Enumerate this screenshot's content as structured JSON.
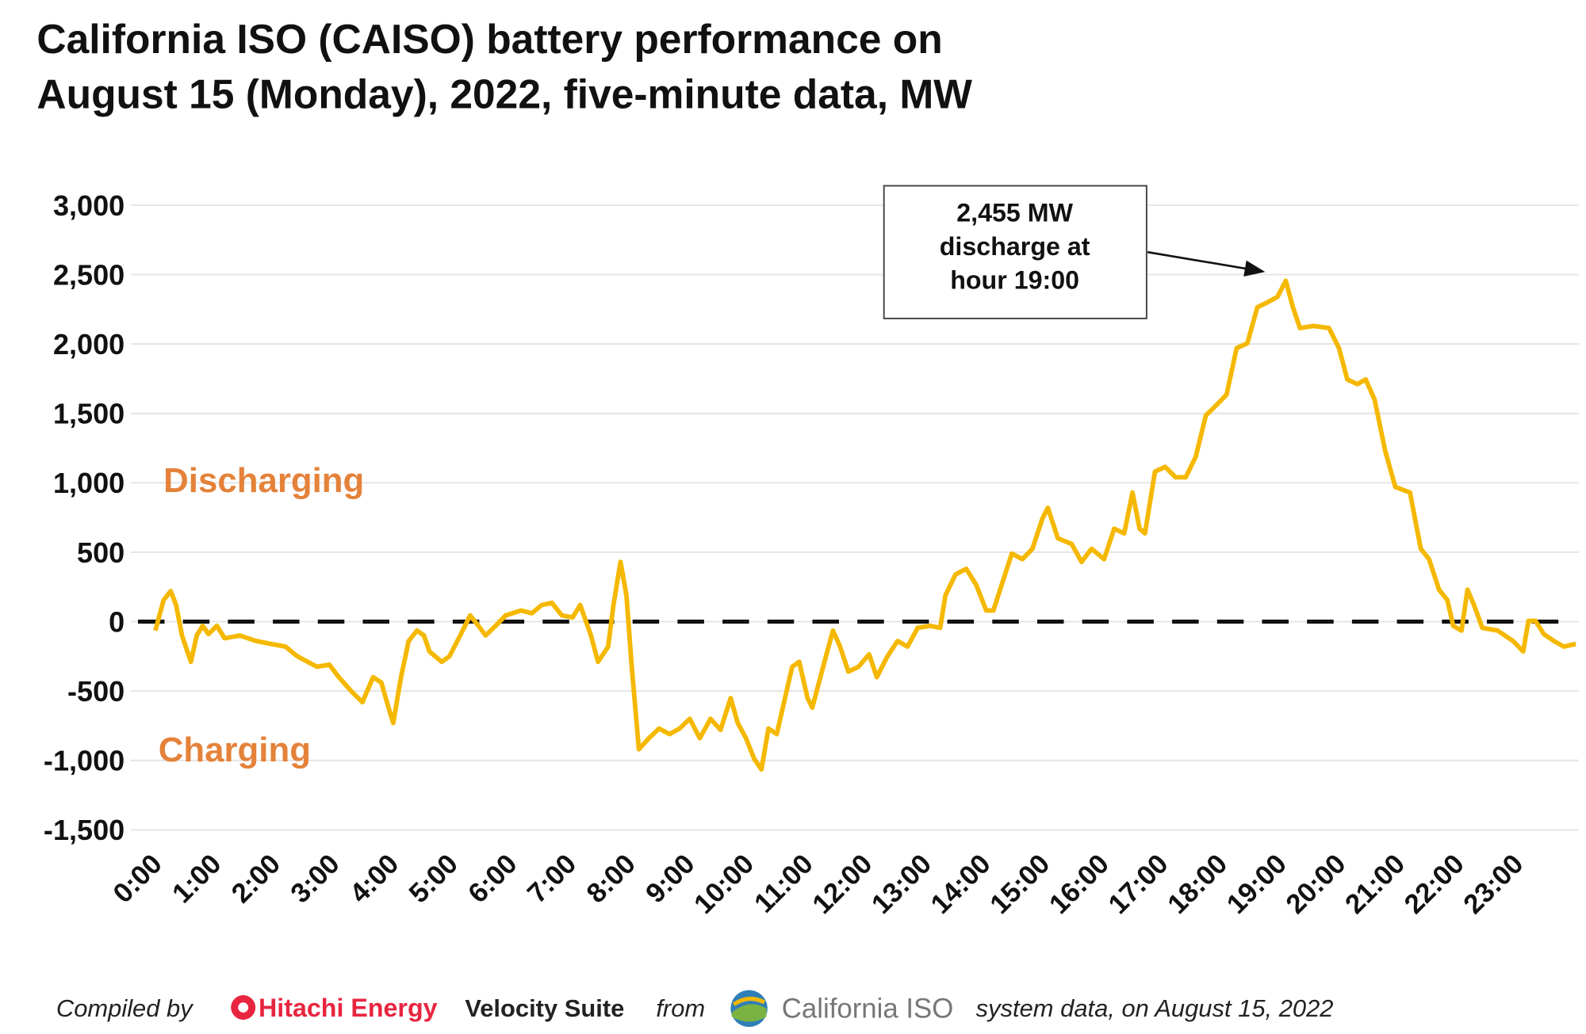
{
  "chart_data": {
    "type": "line",
    "title_lines": [
      "California ISO (CAISO) battery performance on",
      "August 15 (Monday), 2022, five-minute data, MW"
    ],
    "color": "#f5b800",
    "grid": true,
    "ylim": [
      -1500,
      3000
    ],
    "yticks": [
      {
        "value": -1500,
        "label": "-1,500"
      },
      {
        "value": -1000,
        "label": "-1,000"
      },
      -500,
      0,
      500,
      {
        "value": 1000,
        "label": "1,000"
      },
      {
        "value": 1500,
        "label": "1,500"
      },
      {
        "value": 2000,
        "label": "2,000"
      },
      {
        "value": 2500,
        "label": "2,500"
      },
      {
        "value": 3000,
        "label": "3,000"
      }
    ],
    "xlim": [
      0,
      24
    ],
    "xticks": [
      {
        "value": 0,
        "label": "0:00"
      },
      {
        "value": 1,
        "label": "1:00"
      },
      {
        "value": 2,
        "label": "2:00"
      },
      {
        "value": 3,
        "label": "3:00"
      },
      {
        "value": 4,
        "label": "4:00"
      },
      {
        "value": 5,
        "label": "5:00"
      },
      {
        "value": 6,
        "label": "6:00"
      },
      {
        "value": 7,
        "label": "7:00"
      },
      {
        "value": 8,
        "label": "8:00"
      },
      {
        "value": 9,
        "label": "9:00"
      },
      {
        "value": 10,
        "label": "10:00"
      },
      {
        "value": 11,
        "label": "11:00"
      },
      {
        "value": 12,
        "label": "12:00"
      },
      {
        "value": 13,
        "label": "13:00"
      },
      {
        "value": 14,
        "label": "14:00"
      },
      {
        "value": 15,
        "label": "15:00"
      },
      {
        "value": 16,
        "label": "16:00"
      },
      {
        "value": 17,
        "label": "17:00"
      },
      {
        "value": 18,
        "label": "18:00"
      },
      {
        "value": 19,
        "label": "19:00"
      },
      {
        "value": 20,
        "label": "20:00"
      },
      {
        "value": 21,
        "label": "21:00"
      },
      {
        "value": 22,
        "label": "22:00"
      },
      {
        "value": 23,
        "label": "23:00"
      }
    ],
    "x": [
      0,
      0.14,
      0.26,
      0.35,
      0.45,
      0.6,
      0.7,
      0.8,
      0.9,
      1.04,
      1.17,
      1.43,
      1.7,
      1.95,
      2.2,
      2.4,
      2.73,
      2.94,
      3.1,
      3.33,
      3.5,
      3.68,
      3.82,
      3.94,
      4.02,
      4.15,
      4.28,
      4.42,
      4.54,
      4.63,
      4.84,
      4.97,
      5.15,
      5.32,
      5.46,
      5.58,
      5.75,
      5.92,
      6.18,
      6.36,
      6.53,
      6.7,
      6.87,
      7.05,
      7.18,
      7.36,
      7.48,
      7.65,
      7.74,
      7.86,
      7.96,
      8.05,
      8.17,
      8.34,
      8.51,
      8.69,
      8.86,
      9.03,
      9.2,
      9.38,
      9.55,
      9.72,
      9.84,
      9.98,
      10.12,
      10.24,
      10.36,
      10.5,
      10.64,
      10.76,
      10.88,
      11.02,
      11.1,
      11.19,
      11.33,
      11.45,
      11.57,
      11.71,
      11.88,
      12.06,
      12.19,
      12.37,
      12.54,
      12.71,
      12.88,
      13.09,
      13.26,
      13.35,
      13.52,
      13.7,
      13.87,
      14.04,
      14.16,
      14.3,
      14.47,
      14.65,
      14.82,
      14.99,
      15.08,
      15.25,
      15.48,
      15.65,
      15.82,
      16.03,
      16.2,
      16.37,
      16.51,
      16.63,
      16.72,
      16.89,
      17.06,
      17.24,
      17.41,
      17.58,
      17.75,
      17.93,
      18.1,
      18.27,
      18.45,
      18.62,
      18.79,
      18.96,
      19.1,
      19.22,
      19.34,
      19.57,
      19.83,
      20.0,
      20.14,
      20.31,
      20.45,
      20.6,
      20.78,
      20.95,
      21.2,
      21.38,
      21.52,
      21.69,
      21.83,
      21.93,
      22.07,
      22.17,
      22.28,
      22.42,
      22.68,
      22.94,
      23.11,
      23.2,
      23.32,
      23.46,
      23.63,
      23.8,
      24.0
    ],
    "values": [
      -65,
      155,
      220,
      120,
      -100,
      -290,
      -100,
      -30,
      -90,
      -30,
      -120,
      -100,
      -140,
      -160,
      -180,
      -250,
      -325,
      -310,
      -400,
      -510,
      -580,
      -400,
      -440,
      -620,
      -730,
      -400,
      -140,
      -65,
      -100,
      -215,
      -290,
      -250,
      -100,
      45,
      -30,
      -100,
      -30,
      45,
      80,
      60,
      120,
      135,
      45,
      30,
      120,
      -100,
      -290,
      -180,
      120,
      430,
      190,
      -325,
      -920,
      -840,
      -770,
      -810,
      -770,
      -700,
      -840,
      -700,
      -780,
      -550,
      -730,
      -840,
      -990,
      -1065,
      -770,
      -810,
      -550,
      -325,
      -290,
      -550,
      -620,
      -475,
      -250,
      -65,
      -180,
      -360,
      -325,
      -235,
      -400,
      -250,
      -140,
      -180,
      -45,
      -30,
      -45,
      190,
      340,
      380,
      265,
      80,
      80,
      265,
      490,
      450,
      525,
      745,
      820,
      600,
      560,
      430,
      525,
      450,
      670,
      635,
      930,
      670,
      635,
      1080,
      1115,
      1040,
      1040,
      1190,
      1485,
      1560,
      1635,
      1970,
      2005,
      2265,
      2300,
      2340,
      2455,
      2265,
      2115,
      2130,
      2115,
      1970,
      1745,
      1710,
      1745,
      1600,
      1230,
      970,
      930,
      525,
      450,
      230,
      155,
      -30,
      -65,
      230,
      120,
      -45,
      -65,
      -140,
      -215,
      5,
      5,
      -90,
      -140,
      -180,
      -160
    ],
    "annotation_lines": [
      "2,455 MW",
      "discharge at",
      "hour 19:00"
    ],
    "region_labels": [
      "Discharging",
      "Charging"
    ],
    "footer": [
      "Compiled by",
      "Hitachi Energy",
      "Velocity Suite",
      "from",
      "California ISO",
      "system data, on August 15, 2022"
    ]
  }
}
